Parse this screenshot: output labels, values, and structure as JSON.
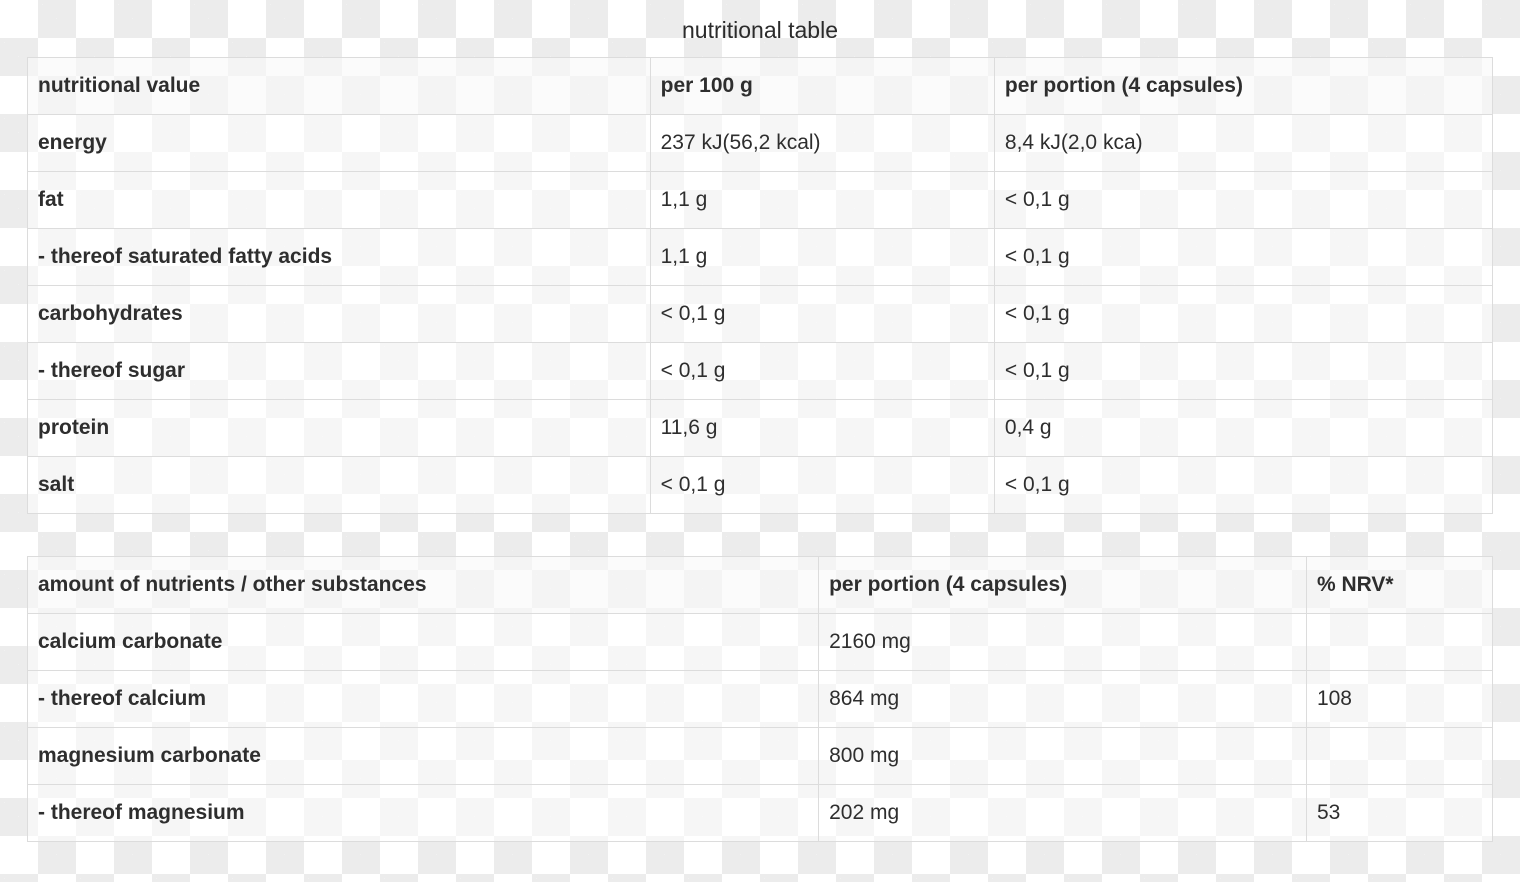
{
  "page": {
    "title": "nutritional table"
  },
  "style": {
    "text_color": "#2e2e2e",
    "border_color": "#dcdcdc",
    "checker_color": "#ececec"
  },
  "chart_data": [
    {
      "type": "table",
      "title": "nutritional table",
      "columns": [
        "nutritional value",
        "per 100 g",
        "per portion (4 capsules)"
      ],
      "rows": [
        [
          "energy",
          "237 kJ(56,2 kcal)",
          "8,4 kJ(2,0 kca)"
        ],
        [
          "fat",
          "1,1 g",
          "< 0,1 g"
        ],
        [
          "- thereof saturated fatty acids",
          "1,1 g",
          "< 0,1 g"
        ],
        [
          "carbohydrates",
          "< 0,1 g",
          "< 0,1 g"
        ],
        [
          "- thereof sugar",
          "< 0,1 g",
          "< 0,1 g"
        ],
        [
          "protein",
          "11,6 g",
          "0,4 g"
        ],
        [
          "salt",
          "< 0,1 g",
          "< 0,1 g"
        ]
      ]
    },
    {
      "type": "table",
      "title": "",
      "columns": [
        "amount of nutrients / other substances",
        "per portion (4 capsules)",
        "% NRV*"
      ],
      "rows": [
        [
          "calcium carbonate",
          "2160 mg",
          ""
        ],
        [
          "- thereof calcium",
          "864 mg",
          "108"
        ],
        [
          "magnesium carbonate",
          "800 mg",
          ""
        ],
        [
          "- thereof magnesium",
          "202 mg",
          "53"
        ]
      ]
    }
  ]
}
